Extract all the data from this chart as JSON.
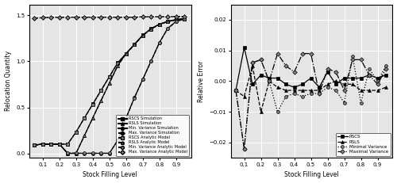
{
  "x": [
    0.05,
    0.1,
    0.15,
    0.2,
    0.25,
    0.3,
    0.35,
    0.4,
    0.45,
    0.5,
    0.55,
    0.6,
    0.65,
    0.7,
    0.75,
    0.8,
    0.85,
    0.9,
    0.95
  ],
  "left_xlabel": "Stock Filling Level",
  "left_ylabel": "Relocation Quantity",
  "right_xlabel": "Stock Filling Level",
  "right_ylabel": "Relative Error",
  "rscs_sim": [
    0.09,
    0.1,
    0.1,
    0.1,
    0.1,
    0.23,
    0.385,
    0.535,
    0.685,
    0.835,
    0.985,
    1.085,
    1.185,
    1.285,
    1.355,
    1.405,
    1.435,
    1.455,
    1.465
  ],
  "rsls_sim": [
    0.09,
    0.1,
    0.1,
    0.1,
    0.0,
    0.0,
    0.19,
    0.385,
    0.575,
    0.765,
    0.955,
    1.085,
    1.185,
    1.285,
    1.355,
    1.405,
    1.435,
    1.455,
    1.465
  ],
  "minvar_sim": [
    0.09,
    0.1,
    0.1,
    0.1,
    0.0,
    0.0,
    0.0,
    0.0,
    0.0,
    0.0,
    0.14,
    0.385,
    0.605,
    0.805,
    1.005,
    1.205,
    1.36,
    1.435,
    1.465
  ],
  "maxvar_sim": [
    1.47,
    1.475,
    1.478,
    1.479,
    1.48,
    1.48,
    1.48,
    1.48,
    1.48,
    1.48,
    1.48,
    1.48,
    1.48,
    1.485,
    1.485,
    1.485,
    1.487,
    1.488,
    1.489
  ],
  "rscs_ana": [
    0.09,
    0.101,
    0.101,
    0.101,
    0.101,
    0.232,
    0.382,
    0.532,
    0.682,
    0.832,
    0.982,
    1.082,
    1.182,
    1.282,
    1.352,
    1.402,
    1.432,
    1.452,
    1.462
  ],
  "rsls_ana": [
    0.09,
    0.101,
    0.101,
    0.101,
    0.001,
    0.001,
    0.191,
    0.382,
    0.572,
    0.762,
    0.952,
    1.082,
    1.182,
    1.282,
    1.352,
    1.402,
    1.432,
    1.452,
    1.462
  ],
  "minvar_ana": [
    0.09,
    0.101,
    0.101,
    0.101,
    0.001,
    0.001,
    0.001,
    0.001,
    0.001,
    0.001,
    0.141,
    0.382,
    0.602,
    0.802,
    1.002,
    1.202,
    1.357,
    1.432,
    1.462
  ],
  "maxvar_ana": [
    1.471,
    1.476,
    1.479,
    1.48,
    1.481,
    1.481,
    1.481,
    1.481,
    1.481,
    1.481,
    1.481,
    1.481,
    1.481,
    1.486,
    1.486,
    1.486,
    1.488,
    1.489,
    1.49
  ],
  "err_rscs": [
    -0.003,
    0.011,
    -0.001,
    0.002,
    0.001,
    0.001,
    -0.001,
    -0.002,
    -0.001,
    0.001,
    -0.002,
    0.003,
    -0.001,
    0.001,
    0.001,
    0.001,
    0.002,
    0.001,
    0.002
  ],
  "err_rsls": [
    -0.003,
    -0.005,
    0.005,
    -0.01,
    0.0,
    -0.002,
    -0.003,
    -0.003,
    -0.003,
    -0.003,
    -0.003,
    -0.001,
    0.0,
    -0.001,
    -0.001,
    -0.003,
    -0.003,
    -0.003,
    -0.002
  ],
  "err_minvar": [
    -0.003,
    -0.022,
    0.006,
    0.007,
    0.0,
    -0.01,
    -0.005,
    -0.004,
    -0.005,
    -0.004,
    -0.004,
    -0.002,
    -0.003,
    -0.007,
    0.008,
    -0.007,
    0.004,
    0.0,
    0.005
  ],
  "err_maxvar": [
    -0.003,
    -0.022,
    0.006,
    0.007,
    0.0,
    0.009,
    0.005,
    0.003,
    0.009,
    0.009,
    -0.004,
    0.004,
    0.003,
    -0.003,
    0.007,
    0.007,
    0.002,
    -0.001,
    0.004
  ],
  "left_legend": [
    "RSCS Simulation",
    "RSLS Simulation",
    "Min. Variance Simulation",
    "Max. Variance Simulation",
    "RSCS Analytic Model",
    "RSLS Analytic Model",
    "Min. Variance Analytic Model",
    "Max. Variance Analytic Model"
  ],
  "right_legend": [
    "RSCS",
    "RSLS",
    "Minimal Variance",
    "Maximal Variance"
  ]
}
